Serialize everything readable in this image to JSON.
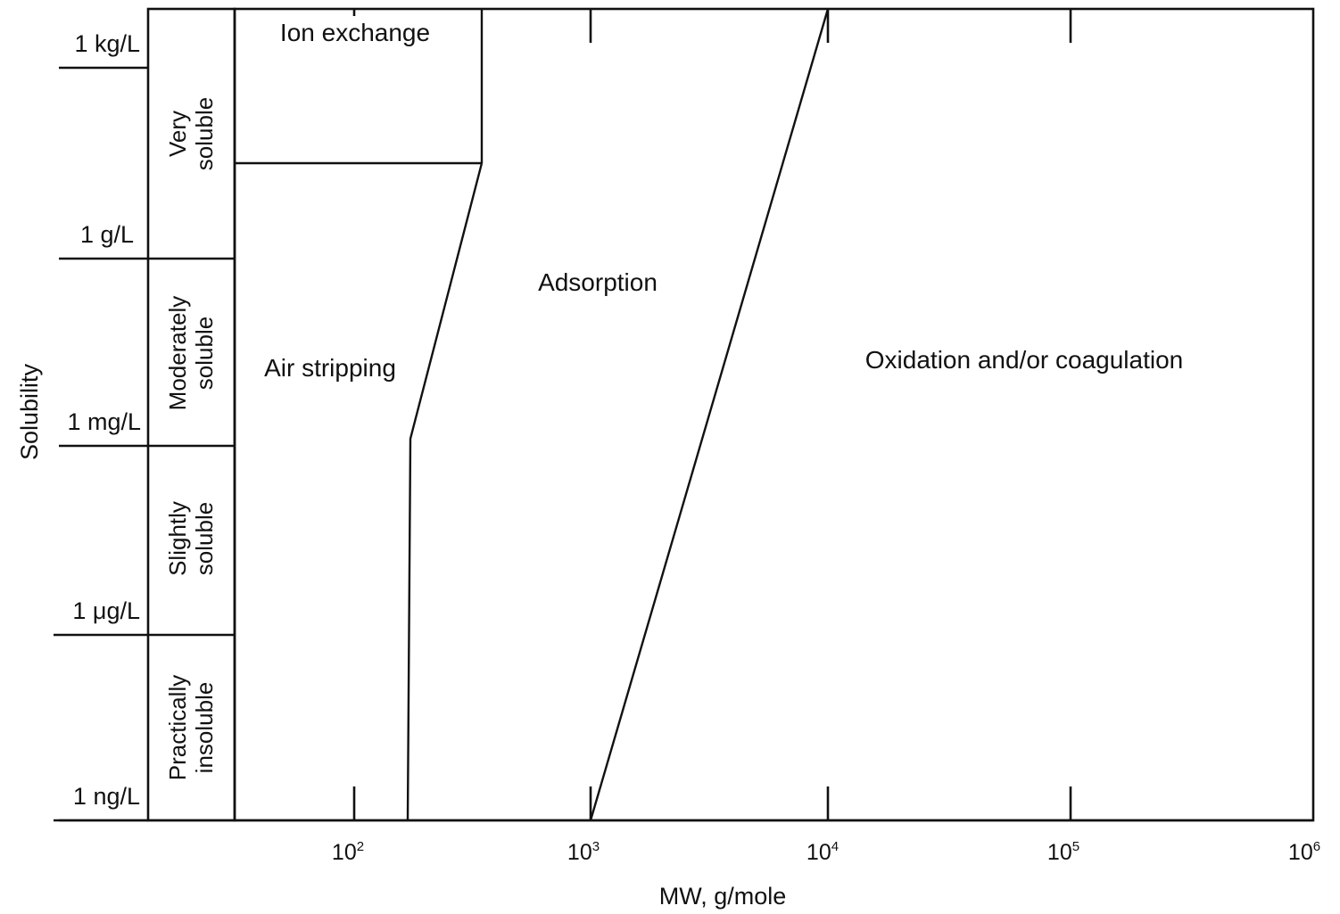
{
  "axes": {
    "x_title": "MW, g/mole",
    "y_title": "Solubility"
  },
  "y_ticks": [
    "1 kg/L",
    "1 g/L",
    "1 mg/L",
    "1 μg/L",
    "1 ng/L"
  ],
  "x_ticks": [
    {
      "base": "10",
      "exp": "2"
    },
    {
      "base": "10",
      "exp": "3"
    },
    {
      "base": "10",
      "exp": "4"
    },
    {
      "base": "10",
      "exp": "5"
    },
    {
      "base": "10",
      "exp": "6"
    }
  ],
  "solubility_classes": [
    {
      "line1": "Very",
      "line2": "soluble"
    },
    {
      "line1": "Moderately",
      "line2": "soluble"
    },
    {
      "line1": "Slightly",
      "line2": "soluble"
    },
    {
      "line1": "Practically",
      "line2": "insoluble"
    }
  ],
  "regions": {
    "ion_exchange": "Ion exchange",
    "air_stripping": "Air stripping",
    "adsorption": "Adsorption",
    "oxidation": "Oxidation and/or coagulation"
  }
}
